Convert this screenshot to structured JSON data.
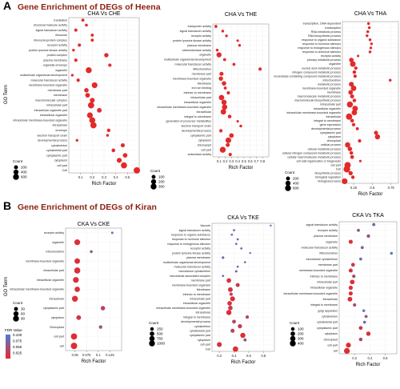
{
  "figure": {
    "panel_a_letter": "A",
    "panel_a_heading": "Gene Enrichment of DEGs of Heena",
    "panel_b_letter": "B",
    "panel_b_heading": "Gene Enrichment of DEGs of Kiran",
    "y_axis_label": "GO Term",
    "x_axis_label": "Rich Factor",
    "legend_count_title": "Count",
    "legend_fdr_title": "FDR Value",
    "colors": {
      "low_fdr": "#e8282b",
      "high_fdr": "#4a7fd0",
      "point": "#e22a2a"
    }
  },
  "chart_data": [
    {
      "type": "scatter",
      "title": "CHA Vs CHE",
      "xlabel": "Rich Factor",
      "ylabel": "GO Term",
      "xlim": [
        0,
        0.6
      ],
      "xticks": [
        0.1,
        0.2,
        0.3,
        0.4,
        0.5
      ],
      "categories": [
        "translation",
        "structural molecule activity",
        "signal transducer activity",
        "ribosome",
        "ribonucleoprotein complex",
        "receptor activity",
        "protein tyrosine kinase activity",
        "protein complex",
        "plasma membrane",
        "organelle envelope",
        "organelle",
        "multicellular organismal development",
        "molecular transducer activity",
        "membrane-bounded organelle",
        "membrane part",
        "membrane",
        "macromolecular complex",
        "intracellular part",
        "intracellular organelle part",
        "intracellular organelle",
        "intracellular membrane-bounded organelle",
        "intracellular",
        "envelope",
        "electron transport chain",
        "developmental process",
        "cytoskeleton",
        "cytoskeletal part",
        "cytoplasmic part",
        "cytoplasm",
        "cell part",
        "Cell"
      ],
      "x": [
        0.12,
        0.15,
        0.06,
        0.2,
        0.2,
        0.09,
        0.04,
        0.32,
        0.06,
        0.35,
        0.17,
        0.03,
        0.08,
        0.22,
        0.15,
        0.16,
        0.2,
        0.19,
        0.26,
        0.18,
        0.2,
        0.21,
        0.34,
        0.33,
        0.07,
        0.46,
        0.38,
        0.48,
        0.43,
        0.47,
        0.58
      ],
      "counts": [
        90,
        70,
        100,
        90,
        90,
        100,
        60,
        260,
        120,
        120,
        600,
        50,
        110,
        560,
        280,
        320,
        360,
        700,
        320,
        580,
        620,
        680,
        140,
        60,
        50,
        220,
        160,
        300,
        380,
        650,
        720
      ],
      "legend_counts": [
        200,
        400,
        600
      ],
      "legend_count_labels": [
        "200",
        "400",
        "600"
      ],
      "legend_title": "Count"
    },
    {
      "type": "scatter",
      "title": "CHA Vs THE",
      "xlabel": "Rich Factor",
      "ylabel": "",
      "xlim": [
        0,
        0.9
      ],
      "xticks": [
        0.1,
        0.2,
        0.3,
        0.4,
        0.5,
        0.6,
        0.7,
        0.8
      ],
      "categories": [
        "transporter activity",
        "signal transducer activity",
        "receptor activity",
        "protein tyrosine kinase activity",
        "plasma membrane",
        "oxidoreductase activity",
        "organelle",
        "multicellular organismal development",
        "molecular transducer activity",
        "Mitochondrion",
        "membrane part",
        "membrane-bounded organelle",
        "Membrane",
        "iron ion binding",
        "intrinsic to membrane",
        "intracellular part",
        "intracellular organelle",
        "intracellular membrane-bounded organelle",
        "intracellular",
        "integral to membrane",
        "generation of precursor metabolites",
        "electron transport chain",
        "developmental process",
        "cytoplasmic part",
        "cytoplasm",
        "chloroplast",
        "cell part",
        "antioxidant activity"
      ],
      "x": [
        0.05,
        0.16,
        0.22,
        0.4,
        0.43,
        0.07,
        0.1,
        0.19,
        0.34,
        0.76,
        0.14,
        0.13,
        0.18,
        0.2,
        0.25,
        0.14,
        0.18,
        0.19,
        0.17,
        0.27,
        0.4,
        0.45,
        0.13,
        0.3,
        0.25,
        0.24,
        0.16,
        0.28
      ],
      "counts": [
        40,
        30,
        25,
        20,
        30,
        30,
        200,
        40,
        40,
        60,
        110,
        130,
        140,
        40,
        60,
        240,
        210,
        220,
        250,
        80,
        20,
        30,
        60,
        150,
        270,
        100,
        300,
        60
      ],
      "legend_counts": [
        100,
        200,
        300
      ],
      "legend_count_labels": [
        "100",
        "200",
        "300"
      ],
      "legend_title": "Count"
    },
    {
      "type": "scatter",
      "title": "CHA Vs THA",
      "xlabel": "Rich Factor",
      "ylabel": "",
      "xlim": [
        0.1,
        0.85
      ],
      "xticks": [
        0.25,
        0.5,
        0.75
      ],
      "categories": [
        "transcription, DNA-dependent",
        "transcription",
        "RNA metabolic process",
        "RNA biosynthetic process",
        "response to organic substance",
        "response to hormone stimulus",
        "response to endogenous stimulus",
        "response to chemical stimulus",
        "receptor activity",
        "primary metabolic process",
        "organelle",
        "nucleic acid metabolic process",
        "nitrogen compound metabolic process",
        "nucleobase-containing compound metabolic process",
        "mitochondrion",
        "metabolic process",
        "membrane-bounded organelle",
        "membrane",
        "macromolecule metabolic process",
        "macromolecule biosynthetic process",
        "intracellular part",
        "intracellular organelle",
        "intracellular membrane-bounded organelle",
        "intracellular",
        "integral to membrane",
        "gene expression",
        "developmental process",
        "cytoplasmic part",
        "cytoplasm",
        "chloroplast",
        "cellular process",
        "cellular metabolic process",
        "cellular nitrogen compound metabolic process",
        "cellular macromolecule metabolic process",
        "cell wall organization or biogenesis",
        "cell part",
        "Cell",
        "biosynthetic process",
        "biological regulation",
        "biological process"
      ],
      "x": [
        0.45,
        0.46,
        0.44,
        0.43,
        0.47,
        0.49,
        0.48,
        0.47,
        0.31,
        0.22,
        0.24,
        0.28,
        0.26,
        0.27,
        0.74,
        0.22,
        0.25,
        0.21,
        0.23,
        0.26,
        0.2,
        0.27,
        0.26,
        0.19,
        0.23,
        0.25,
        0.3,
        0.55,
        0.57,
        0.33,
        0.17,
        0.2,
        0.22,
        0.23,
        0.34,
        0.17,
        0.16,
        0.21,
        0.24,
        0.13
      ],
      "counts": [
        60,
        60,
        70,
        60,
        60,
        50,
        50,
        60,
        40,
        300,
        520,
        120,
        150,
        110,
        60,
        360,
        480,
        300,
        210,
        150,
        640,
        500,
        480,
        700,
        160,
        130,
        90,
        220,
        420,
        120,
        460,
        280,
        150,
        170,
        40,
        700,
        800,
        250,
        130,
        560
      ],
      "legend_counts": [
        200,
        400,
        600
      ],
      "legend_count_labels": [
        "200",
        "400",
        "600"
      ],
      "legend_title": "Count"
    },
    {
      "type": "scatter",
      "title": "CKA Vs CKE",
      "xlabel": "Rich Factor",
      "ylabel": "GO Term",
      "xlim": [
        0.03,
        0.15
      ],
      "xticks": [
        0.05,
        0.075,
        0.1,
        0.125
      ],
      "categories": [
        "receptor activity",
        "organelle",
        "mitochondrion",
        "membrane-bounded organelle",
        "intracellular part",
        "intracellular organelle",
        "intracellular membrane-bounded organelle",
        "intracellular",
        "cytoplasmic part",
        "cytoplasm",
        "Chloroplast",
        "cell part",
        "cell"
      ],
      "x": [
        0.13,
        0.055,
        0.085,
        0.055,
        0.055,
        0.052,
        0.055,
        0.05,
        0.11,
        0.058,
        0.105,
        0.048,
        0.048
      ],
      "counts": [
        5,
        85,
        10,
        75,
        95,
        85,
        70,
        90,
        40,
        50,
        20,
        100,
        110
      ],
      "fdr": [
        0.09,
        0.01,
        0.06,
        0.01,
        0.005,
        0.01,
        0.01,
        0.005,
        0.03,
        0.02,
        0.05,
        0.005,
        0.005
      ],
      "legend_counts": [
        30,
        60,
        90
      ],
      "legend_count_labels": [
        "30",
        "60",
        "90"
      ],
      "legend_title": "Count",
      "fdr_ticks": [
        0.1,
        0.075,
        0.05,
        0.025
      ],
      "fdr_tick_labels": [
        "0.100",
        "0.075",
        "0.050",
        "0.025"
      ]
    },
    {
      "type": "scatter",
      "title": "CKA Vs TKE",
      "xlabel": "Rich Factor",
      "ylabel": "",
      "xlim": [
        0.1,
        0.95
      ],
      "xticks": [
        0.2,
        0.4,
        0.6,
        0.8
      ],
      "categories": [
        "Vacuole",
        "signal transducer activity",
        "response to organic substance",
        "response to hormone stimulus",
        "response to endogenous stimulus",
        "receptor activity",
        "protein tyrosine kinase activity",
        "plasma membrane",
        "multicellular organismal development",
        "molecular transducer activity",
        "microtubule cytoskeleton",
        "microtubule associated complex",
        "membrane part",
        "membrane-bounded organelle",
        "Membrane",
        "intrinsic to membrane",
        "intracellular part",
        "intracellular organelle",
        "intracellular membrane-bounded organelle",
        "intracellular",
        "integral to membrane",
        "developmental process",
        "cytoskeleton",
        "cytoskeletal part",
        "cytoplasmic part",
        "cytoplasm",
        "cell part",
        "Cell"
      ],
      "x": [
        0.9,
        0.4,
        0.37,
        0.45,
        0.43,
        0.5,
        0.62,
        0.25,
        0.55,
        0.45,
        0.43,
        0.25,
        0.33,
        0.45,
        0.35,
        0.36,
        0.38,
        0.34,
        0.35,
        0.33,
        0.58,
        0.4,
        0.48,
        0.38,
        0.52,
        0.55,
        0.2,
        0.42
      ],
      "counts": [
        20,
        40,
        40,
        40,
        40,
        40,
        20,
        80,
        30,
        40,
        60,
        40,
        500,
        350,
        550,
        200,
        600,
        500,
        480,
        700,
        200,
        300,
        400,
        350,
        700,
        150,
        600,
        800
      ],
      "fdr": [
        0.08,
        0.08,
        0.09,
        0.07,
        0.08,
        0.07,
        0.09,
        0.07,
        0.08,
        0.08,
        0.06,
        0.08,
        0.01,
        0.02,
        0.01,
        0.03,
        0.005,
        0.01,
        0.02,
        0.005,
        0.03,
        0.03,
        0.02,
        0.03,
        0.005,
        0.05,
        0.01,
        0.005
      ],
      "legend_counts": [
        250,
        500,
        750,
        1000
      ],
      "legend_count_labels": [
        "250",
        "500",
        "750",
        "1000"
      ],
      "legend_title": "Count"
    },
    {
      "type": "scatter",
      "title": "CKA Vs TKA",
      "xlabel": "Rich Factor",
      "ylabel": "",
      "xlim": [
        0,
        0.75
      ],
      "xticks": [
        0.2,
        0.4,
        0.6
      ],
      "categories": [
        "signal transducer activity",
        "receptor activity",
        "plasma membrane",
        "organelle",
        "molecular transducer activity",
        "Mitochondrion",
        "microtubule cytoskeleton",
        "membrane part",
        "membrane-bounded organelle",
        "intrinsic to membrane",
        "intracellular part",
        "intracellular organelle",
        "intracellular membrane-bounded organelle",
        "intracellular",
        "integral to membrane",
        "golgi apparatus",
        "cytoskeleton",
        "cytoskeletal part",
        "cytoplasmic part",
        "cytoplasm",
        "chloroplast",
        "cell part",
        "cell"
      ],
      "x": [
        0.45,
        0.25,
        0.38,
        0.15,
        0.3,
        0.68,
        0.28,
        0.18,
        0.15,
        0.19,
        0.17,
        0.15,
        0.15,
        0.14,
        0.2,
        0.32,
        0.35,
        0.33,
        0.28,
        0.38,
        0.28,
        0.12,
        0.1
      ],
      "counts": [
        60,
        60,
        90,
        150,
        60,
        40,
        50,
        120,
        140,
        80,
        200,
        150,
        140,
        220,
        80,
        40,
        60,
        50,
        120,
        180,
        100,
        250,
        380
      ],
      "fdr": [
        0.07,
        0.06,
        0.05,
        0.01,
        0.07,
        0.09,
        0.08,
        0.02,
        0.01,
        0.04,
        0.005,
        0.01,
        0.01,
        0.005,
        0.04,
        0.08,
        0.06,
        0.07,
        0.02,
        0.01,
        0.03,
        0.005,
        0.005
      ],
      "legend_counts": [
        100,
        200,
        300,
        400
      ],
      "legend_count_labels": [
        "100",
        "200",
        "300",
        "400"
      ],
      "legend_title": "Count"
    }
  ]
}
